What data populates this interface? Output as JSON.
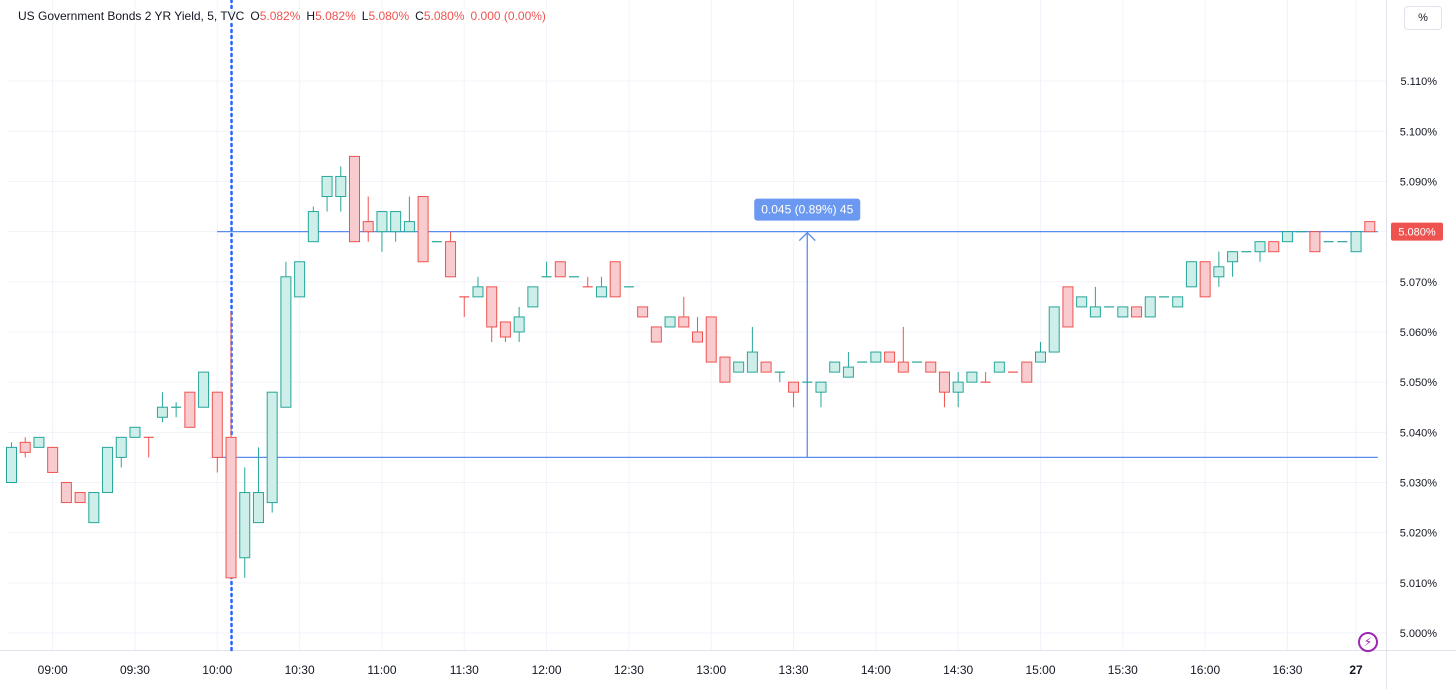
{
  "header": {
    "title": "US Government Bonds 2 YR Yield, 5, TVC",
    "o_label": "O",
    "o_value": "5.082%",
    "h_label": "H",
    "h_value": "5.082%",
    "l_label": "L",
    "l_value": "5.080%",
    "c_label": "C",
    "c_value": "5.080%",
    "change": "0.000 (0.00%)"
  },
  "scale_button": "%",
  "last_price_label": "5.080%",
  "measure_label": "0.045 (0.89%) 45",
  "colors": {
    "up": "#26a69a",
    "down": "#ef5350",
    "up_fill": "#cdeee9",
    "down_fill": "#f8cccf",
    "tool": "#5b8def",
    "marker": "#2962ff"
  },
  "chart_data": {
    "type": "candlestick",
    "interval": "5 min",
    "ylim": [
      5.0,
      5.12
    ],
    "ytick_values": [
      5.0,
      5.01,
      5.02,
      5.03,
      5.04,
      5.05,
      5.06,
      5.07,
      5.08,
      5.09,
      5.1,
      5.11
    ],
    "y_ticks": [
      "5.000%",
      "5.010%",
      "5.020%",
      "5.030%",
      "5.040%",
      "5.050%",
      "5.060%",
      "5.070%",
      "5.080%",
      "5.090%",
      "5.100%",
      "5.110%"
    ],
    "x_ticks": [
      {
        "label": "09:00",
        "bar": 3
      },
      {
        "label": "09:30",
        "bar": 9
      },
      {
        "label": "10:00",
        "bar": 15
      },
      {
        "label": "10:30",
        "bar": 21
      },
      {
        "label": "11:00",
        "bar": 27
      },
      {
        "label": "11:30",
        "bar": 33
      },
      {
        "label": "12:00",
        "bar": 39
      },
      {
        "label": "12:30",
        "bar": 45
      },
      {
        "label": "13:00",
        "bar": 51
      },
      {
        "label": "13:30",
        "bar": 57
      },
      {
        "label": "14:00",
        "bar": 63
      },
      {
        "label": "14:30",
        "bar": 69
      },
      {
        "label": "15:00",
        "bar": 75
      },
      {
        "label": "15:30",
        "bar": 81
      },
      {
        "label": "16:00",
        "bar": 87
      },
      {
        "label": "16:30",
        "bar": 93
      },
      {
        "label": "27",
        "bar": 98
      }
    ],
    "candles": [
      [
        5.03,
        5.038,
        5.03,
        5.037
      ],
      [
        5.038,
        5.039,
        5.035,
        5.036
      ],
      [
        5.037,
        5.039,
        5.037,
        5.039
      ],
      [
        5.037,
        5.037,
        5.032,
        5.032
      ],
      [
        5.03,
        5.03,
        5.026,
        5.026
      ],
      [
        5.028,
        5.028,
        5.026,
        5.026
      ],
      [
        5.022,
        5.028,
        5.022,
        5.028
      ],
      [
        5.028,
        5.037,
        5.028,
        5.037
      ],
      [
        5.035,
        5.039,
        5.033,
        5.039
      ],
      [
        5.039,
        5.041,
        5.039,
        5.041
      ],
      [
        5.039,
        5.039,
        5.035,
        5.039
      ],
      [
        5.043,
        5.048,
        5.042,
        5.045
      ],
      [
        5.045,
        5.046,
        5.043,
        5.045
      ],
      [
        5.048,
        5.048,
        5.041,
        5.041
      ],
      [
        5.045,
        5.052,
        5.045,
        5.052
      ],
      [
        5.048,
        5.048,
        5.032,
        5.035
      ],
      [
        5.039,
        5.064,
        5.011,
        5.011
      ],
      [
        5.015,
        5.033,
        5.011,
        5.028
      ],
      [
        5.022,
        5.037,
        5.022,
        5.028
      ],
      [
        5.026,
        5.048,
        5.024,
        5.048
      ],
      [
        5.045,
        5.074,
        5.045,
        5.071
      ],
      [
        5.067,
        5.074,
        5.067,
        5.074
      ],
      [
        5.078,
        5.085,
        5.078,
        5.084
      ],
      [
        5.087,
        5.091,
        5.084,
        5.091
      ],
      [
        5.087,
        5.093,
        5.084,
        5.091
      ],
      [
        5.095,
        5.095,
        5.078,
        5.078
      ],
      [
        5.082,
        5.087,
        5.078,
        5.08
      ],
      [
        5.08,
        5.084,
        5.076,
        5.084
      ],
      [
        5.08,
        5.084,
        5.078,
        5.084
      ],
      [
        5.08,
        5.087,
        5.08,
        5.082
      ],
      [
        5.087,
        5.087,
        5.074,
        5.074
      ],
      [
        5.078,
        5.078,
        5.078,
        5.078
      ],
      [
        5.078,
        5.08,
        5.071,
        5.071
      ],
      [
        5.067,
        5.067,
        5.063,
        5.067
      ],
      [
        5.067,
        5.071,
        5.067,
        5.069
      ],
      [
        5.069,
        5.069,
        5.058,
        5.061
      ],
      [
        5.062,
        5.062,
        5.058,
        5.059
      ],
      [
        5.06,
        5.065,
        5.058,
        5.063
      ],
      [
        5.065,
        5.069,
        5.065,
        5.069
      ],
      [
        5.071,
        5.074,
        5.071,
        5.071
      ],
      [
        5.074,
        5.074,
        5.071,
        5.071
      ],
      [
        5.071,
        5.071,
        5.071,
        5.071
      ],
      [
        5.069,
        5.071,
        5.069,
        5.069
      ],
      [
        5.067,
        5.071,
        5.067,
        5.069
      ],
      [
        5.074,
        5.074,
        5.067,
        5.067
      ],
      [
        5.069,
        5.069,
        5.069,
        5.069
      ],
      [
        5.065,
        5.065,
        5.063,
        5.063
      ],
      [
        5.061,
        5.061,
        5.058,
        5.058
      ],
      [
        5.061,
        5.063,
        5.061,
        5.063
      ],
      [
        5.063,
        5.067,
        5.061,
        5.061
      ],
      [
        5.06,
        5.063,
        5.058,
        5.058
      ],
      [
        5.063,
        5.063,
        5.054,
        5.054
      ],
      [
        5.055,
        5.055,
        5.05,
        5.05
      ],
      [
        5.052,
        5.054,
        5.052,
        5.054
      ],
      [
        5.052,
        5.061,
        5.052,
        5.056
      ],
      [
        5.054,
        5.054,
        5.052,
        5.052
      ],
      [
        5.052,
        5.052,
        5.05,
        5.052
      ],
      [
        5.05,
        5.05,
        5.045,
        5.048
      ],
      [
        5.05,
        5.05,
        5.05,
        5.05
      ],
      [
        5.048,
        5.05,
        5.045,
        5.05
      ],
      [
        5.052,
        5.054,
        5.052,
        5.054
      ],
      [
        5.051,
        5.056,
        5.051,
        5.053
      ],
      [
        5.054,
        5.054,
        5.054,
        5.054
      ],
      [
        5.054,
        5.056,
        5.054,
        5.056
      ],
      [
        5.056,
        5.056,
        5.054,
        5.054
      ],
      [
        5.054,
        5.061,
        5.052,
        5.052
      ],
      [
        5.054,
        5.054,
        5.054,
        5.054
      ],
      [
        5.054,
        5.054,
        5.052,
        5.052
      ],
      [
        5.052,
        5.052,
        5.045,
        5.048
      ],
      [
        5.048,
        5.052,
        5.045,
        5.05
      ],
      [
        5.05,
        5.052,
        5.05,
        5.052
      ],
      [
        5.05,
        5.052,
        5.05,
        5.05
      ],
      [
        5.052,
        5.054,
        5.052,
        5.054
      ],
      [
        5.052,
        5.052,
        5.052,
        5.052
      ],
      [
        5.054,
        5.054,
        5.05,
        5.05
      ],
      [
        5.054,
        5.058,
        5.054,
        5.056
      ],
      [
        5.056,
        5.065,
        5.056,
        5.065
      ],
      [
        5.069,
        5.069,
        5.061,
        5.061
      ],
      [
        5.065,
        5.067,
        5.065,
        5.067
      ],
      [
        5.063,
        5.069,
        5.063,
        5.065
      ],
      [
        5.065,
        5.065,
        5.065,
        5.065
      ],
      [
        5.063,
        5.065,
        5.063,
        5.065
      ],
      [
        5.065,
        5.065,
        5.063,
        5.063
      ],
      [
        5.063,
        5.067,
        5.063,
        5.067
      ],
      [
        5.067,
        5.067,
        5.067,
        5.067
      ],
      [
        5.065,
        5.067,
        5.065,
        5.067
      ],
      [
        5.069,
        5.074,
        5.069,
        5.074
      ],
      [
        5.074,
        5.074,
        5.067,
        5.067
      ],
      [
        5.071,
        5.076,
        5.069,
        5.073
      ],
      [
        5.074,
        5.076,
        5.071,
        5.076
      ],
      [
        5.076,
        5.076,
        5.076,
        5.076
      ],
      [
        5.076,
        5.078,
        5.074,
        5.078
      ],
      [
        5.078,
        5.078,
        5.076,
        5.076
      ],
      [
        5.078,
        5.08,
        5.078,
        5.08
      ],
      [
        5.08,
        5.08,
        5.08,
        5.08
      ],
      [
        5.08,
        5.08,
        5.076,
        5.076
      ],
      [
        5.078,
        5.078,
        5.078,
        5.078
      ],
      [
        5.078,
        5.078,
        5.078,
        5.078
      ],
      [
        5.076,
        5.08,
        5.076,
        5.08
      ],
      [
        5.082,
        5.082,
        5.08,
        5.08
      ]
    ],
    "candle_fields": [
      "open",
      "high",
      "low",
      "close"
    ],
    "horizontal_lines": [
      5.08,
      5.035
    ],
    "measure": {
      "from_bar": 58,
      "from_value": 5.035,
      "to_value": 5.08,
      "label": "0.045 (0.89%) 45"
    },
    "vertical_marker_bar": 16,
    "last_price": 5.08,
    "grid": true
  }
}
